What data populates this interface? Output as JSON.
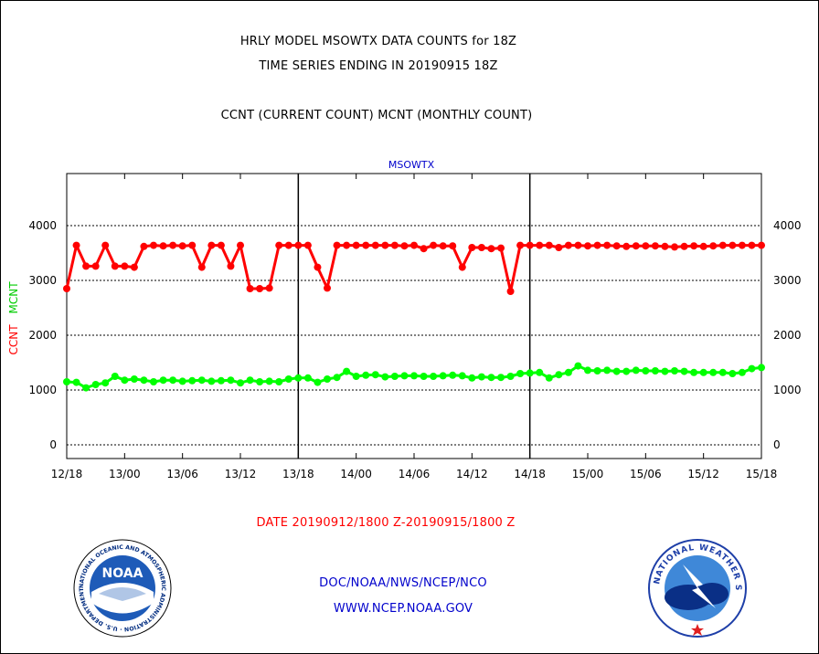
{
  "header": {
    "title1": "HRLY MODEL MSOWTX DATA COUNTS for 18Z",
    "title2": "TIME SERIES ENDING IN 20190915 18Z",
    "title3": "CCNT (CURRENT COUNT) MCNT (MONTHLY COUNT)"
  },
  "footer": {
    "date_range": "DATE 20190912/1800 Z-20190915/1800 Z",
    "org_line": "DOC/NOAA/NWS/NCEP/NCO",
    "url": "WWW.NCEP.NOAA.GOV"
  },
  "logos": {
    "noaa_text": "NOAA",
    "noaa_ring": "NATIONAL OCEANIC AND ATMOSPHERIC ADMINISTRATION · U.S. DEPARTMENT OF COMMERCE ·",
    "nws_ring": "NATIONAL WEATHER SERVICE"
  },
  "colors": {
    "ccnt": "#ff0000",
    "mcnt": "#00ff00",
    "label_blue": "#0000cc",
    "date_red": "#ff0000"
  },
  "chart_data": {
    "type": "line",
    "title": "MSOWTX",
    "ylabel_parts": [
      "CCNT",
      "MCNT"
    ],
    "ylim": [
      -250,
      4950
    ],
    "yticks": [
      0,
      1000,
      2000,
      3000,
      4000
    ],
    "xticks": [
      "12/18",
      "13/00",
      "13/06",
      "13/12",
      "13/18",
      "14/00",
      "14/06",
      "14/12",
      "14/18",
      "15/00",
      "15/06",
      "15/12",
      "15/18"
    ],
    "x_range_hours": [
      0,
      72
    ],
    "grid": "horizontal dashed at y ticks",
    "day_dividers_hours": [
      24,
      48
    ],
    "series": [
      {
        "name": "CCNT",
        "color": "#ff0000",
        "values": [
          2850,
          3640,
          3260,
          3260,
          3640,
          3260,
          3260,
          3240,
          3620,
          3640,
          3630,
          3640,
          3630,
          3640,
          3240,
          3640,
          3640,
          3260,
          3640,
          2850,
          2850,
          2860,
          3640,
          3640,
          3640,
          3640,
          3240,
          2860,
          3640,
          3640,
          3640,
          3640,
          3640,
          3640,
          3640,
          3630,
          3640,
          3580,
          3640,
          3630,
          3630,
          3240,
          3600,
          3600,
          3580,
          3590,
          2800,
          3640,
          3640,
          3640,
          3640,
          3600,
          3640,
          3640,
          3630,
          3640,
          3640,
          3630,
          3620,
          3630,
          3630,
          3630,
          3620,
          3610,
          3620,
          3630,
          3620,
          3630,
          3640,
          3640,
          3640,
          3640,
          3640
        ]
      },
      {
        "name": "MCNT",
        "color": "#00ff00",
        "values": [
          1150,
          1140,
          1040,
          1100,
          1130,
          1250,
          1180,
          1200,
          1180,
          1150,
          1180,
          1180,
          1160,
          1170,
          1180,
          1160,
          1170,
          1180,
          1130,
          1180,
          1150,
          1160,
          1150,
          1200,
          1220,
          1220,
          1140,
          1200,
          1230,
          1340,
          1250,
          1270,
          1280,
          1240,
          1250,
          1260,
          1260,
          1250,
          1250,
          1260,
          1270,
          1260,
          1220,
          1240,
          1230,
          1230,
          1250,
          1300,
          1310,
          1320,
          1220,
          1280,
          1320,
          1440,
          1360,
          1350,
          1360,
          1340,
          1340,
          1360,
          1350,
          1350,
          1340,
          1350,
          1340,
          1320,
          1320,
          1320,
          1320,
          1300,
          1320,
          1390,
          1410
        ]
      }
    ]
  }
}
